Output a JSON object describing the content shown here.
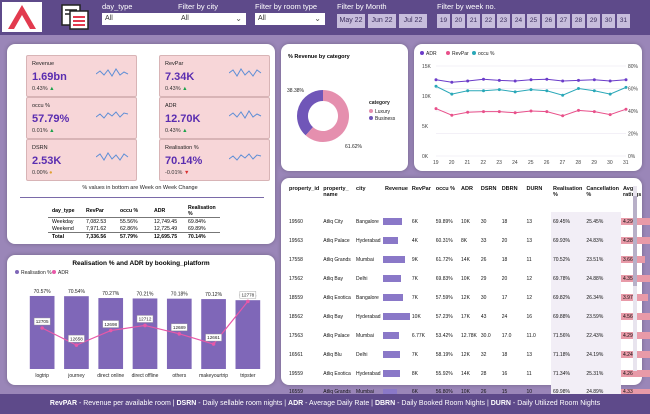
{
  "filters": {
    "day_type": {
      "label": "day_type",
      "value": "All"
    },
    "city": {
      "label": "Filter by city",
      "value": "All"
    },
    "room_type": {
      "label": "Filter by room type",
      "value": "All"
    },
    "month": {
      "label": "Filter by Month",
      "options": [
        "May 22",
        "Jun 22",
        "Jul 22"
      ]
    },
    "week": {
      "label": "Filter by week no.",
      "options": [
        "19",
        "20",
        "21",
        "22",
        "23",
        "24",
        "25",
        "26",
        "27",
        "28",
        "29",
        "30",
        "31"
      ]
    }
  },
  "kpis": [
    {
      "title": "Revenue",
      "value": "1.69bn",
      "change": "0.43%",
      "trend": "up"
    },
    {
      "title": "RevPar",
      "value": "7.34K",
      "change": "0.43%",
      "trend": "up"
    },
    {
      "title": "occu %",
      "value": "57.79%",
      "change": "0.01%",
      "trend": "up"
    },
    {
      "title": "ADR",
      "value": "12.70K",
      "change": "0.43%",
      "trend": "up"
    },
    {
      "title": "DSRN",
      "value": "2.53K",
      "change": "0.00%",
      "trend": "neutral"
    },
    {
      "title": "Realisation %",
      "value": "70.14%",
      "change": "-0.01%",
      "trend": "down"
    }
  ],
  "kpi_note": "% values in bottom are Week on Week Change",
  "day_table": {
    "headers": [
      "day_type",
      "RevPar",
      "occu %",
      "ADR",
      "Realisation %"
    ],
    "rows": [
      [
        "Weekday",
        "7,082.53",
        "55.56%",
        "12,749.45",
        "69.84%"
      ],
      [
        "Weekend",
        "7,971.62",
        "62.86%",
        "12,725.49",
        "69.89%"
      ],
      [
        "Total",
        "7,336.56",
        "57.79%",
        "12,695.75",
        "70.14%"
      ]
    ]
  },
  "donut": {
    "title": "% Revenue by category",
    "legend_title": "category",
    "colors": {
      "Luxury": "#e58fae",
      "Business": "#7056b8"
    }
  },
  "line_chart": {
    "legend": [
      "ADR",
      "RevPar",
      "occu %"
    ],
    "colors": {
      "ADR": "#6b3cc9",
      "RevPar": "#e8508a",
      "occu %": "#2aa8b8"
    }
  },
  "bar_chart": {
    "title": "Realisation % and ADR by booking_platform",
    "legend": [
      "Realisation %",
      "ADR"
    ],
    "colors": {
      "bar": "#7f67b8",
      "line": "#e858a8"
    }
  },
  "chart_data": [
    {
      "type": "pie",
      "title": "% Revenue by category",
      "labels": [
        "Business",
        "Luxury"
      ],
      "values": [
        38.38,
        61.62
      ],
      "data_labels": [
        "38.38%",
        "61.62%"
      ]
    },
    {
      "type": "line",
      "x": [
        19,
        20,
        21,
        22,
        23,
        24,
        25,
        26,
        27,
        28,
        29,
        30,
        31
      ],
      "y_left_ticks": [
        "0K",
        "5K",
        "10K",
        "15K"
      ],
      "y_right_ticks": [
        "0%",
        "20%",
        "40%",
        "60%",
        "80%"
      ],
      "series": [
        {
          "name": "ADR",
          "axis": "left",
          "values": [
            12.7,
            12.3,
            12.5,
            12.8,
            12.6,
            12.5,
            12.7,
            12.8,
            12.5,
            12.6,
            12.7,
            12.5,
            12.7
          ]
        },
        {
          "name": "RevPar",
          "axis": "left",
          "values": [
            7.9,
            6.8,
            7.3,
            7.4,
            7.4,
            7.2,
            7.5,
            7.4,
            6.7,
            7.6,
            7.4,
            6.9,
            7.8
          ]
        },
        {
          "name": "occu %",
          "axis": "right",
          "values": [
            62,
            55,
            58,
            58,
            59,
            57,
            59,
            58,
            54,
            60,
            58,
            55,
            61
          ]
        }
      ]
    },
    {
      "type": "bar",
      "title": "Realisation % and ADR by booking_platform",
      "categories": [
        "logtrip",
        "journey",
        "direct online",
        "direct offline",
        "others",
        "makeyourtrip",
        "tripster"
      ],
      "series": [
        {
          "name": "Realisation %",
          "values": [
            70.57,
            70.54,
            70.27,
            70.21,
            70.18,
            70.12,
            69.96
          ],
          "labels": [
            "70.57%",
            "70.54%",
            "70.27%",
            "70.21%",
            "70.18%",
            "70.12%",
            "69.96%"
          ]
        },
        {
          "name": "ADR",
          "values": [
            12705,
            12658,
            12698,
            12712,
            12689,
            12661,
            12778
          ],
          "labels": [
            "12705",
            "12658",
            "12698",
            "12712",
            "12689",
            "12661",
            "12778"
          ]
        }
      ]
    }
  ],
  "property_table": {
    "headers": [
      "property_id",
      "property_ name",
      "city",
      "Revenue",
      "RevPar",
      "occu %",
      "ADR",
      "DSRN",
      "DBRN",
      "DURN",
      "Realisation %",
      "Cancellation %",
      "Avg ratings"
    ],
    "rows": [
      [
        "19560",
        "Atliq City",
        "Bangalore",
        "",
        "6K",
        "59.89%",
        "10K",
        "30",
        "18",
        "13",
        "69.45%",
        "25.45%",
        "4.29"
      ],
      [
        "19563",
        "Atliq Palace",
        "Hyderabad",
        "",
        "4K",
        "60.31%",
        "8K",
        "33",
        "20",
        "13",
        "69.93%",
        "24.83%",
        "4.28"
      ],
      [
        "17558",
        "Atliq Grands",
        "Mumbai",
        "",
        "9K",
        "61.72%",
        "14K",
        "26",
        "18",
        "11",
        "70.52%",
        "23.51%",
        "3.66"
      ],
      [
        "17562",
        "Atliq Bay",
        "Delhi",
        "",
        "7K",
        "69.83%",
        "10K",
        "29",
        "20",
        "12",
        "69.78%",
        "24.88%",
        "4.35"
      ],
      [
        "18559",
        "Atliq Exotica",
        "Bangalore",
        "",
        "7K",
        "57.59%",
        "12K",
        "30",
        "17",
        "12",
        "69.82%",
        "26.34%",
        "3.97"
      ],
      [
        "18562",
        "Atliq Bay",
        "Hyderabad",
        "",
        "10K",
        "57.23%",
        "17K",
        "43",
        "24",
        "16",
        "69.88%",
        "23.59%",
        "4.56"
      ],
      [
        "17563",
        "Atliq Palace",
        "Mumbai",
        "",
        "6.77K",
        "53.42%",
        "12.78K",
        "30.0",
        "17.0",
        "11.0",
        "71.56%",
        "22.43%",
        "4.29"
      ],
      [
        "16561",
        "Atliq Blu",
        "Delhi",
        "",
        "7K",
        "58.19%",
        "12K",
        "32",
        "18",
        "13",
        "71.18%",
        "24.19%",
        "4.24"
      ],
      [
        "19559",
        "Atliq Exotica",
        "Hyderabad",
        "",
        "8K",
        "55.92%",
        "14K",
        "28",
        "16",
        "11",
        "71.34%",
        "25.31%",
        "4.26"
      ],
      [
        "16559",
        "Atliq Grands",
        "Mumbai",
        "",
        "6K",
        "56.80%",
        "10K",
        "26",
        "15",
        "10",
        "69.98%",
        "24.89%",
        "4.33"
      ]
    ],
    "total": [
      "Total",
      "",
      "",
      "1688M",
      "7.3K",
      "57.79%",
      "12.7K",
      "2,528",
      "1,460.87",
      "1,024.64",
      "70.14%",
      "24.84%",
      "3.62"
    ]
  },
  "footer": [
    {
      "bold": "RevPAR",
      "text": " - Revenue per available room | "
    },
    {
      "bold": "DSRN",
      "text": " - Daily sellable room nights | "
    },
    {
      "bold": "ADR",
      "text": " - Average Daily Rate | "
    },
    {
      "bold": "DBRN",
      "text": " - Daily Booked Room Nights | "
    },
    {
      "bold": "DURN",
      "text": " - Daily Utilized Room Nights"
    }
  ]
}
